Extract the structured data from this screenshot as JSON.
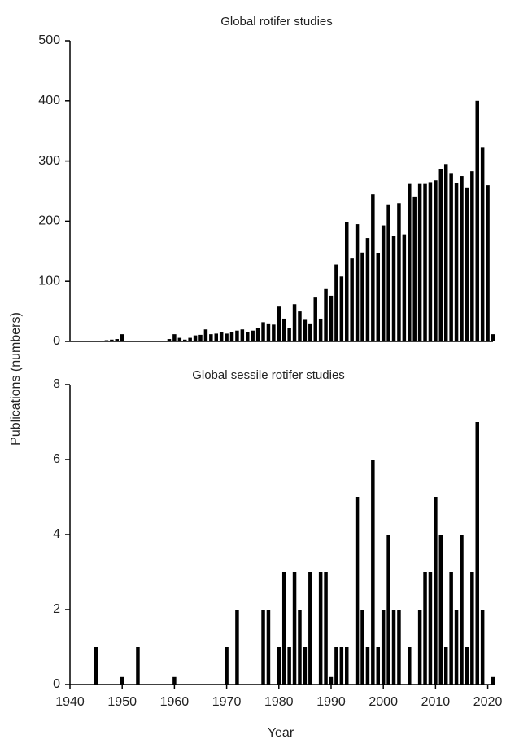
{
  "chart_data": [
    {
      "type": "bar",
      "title": "Global rotifer studies",
      "ylabel": "Publications (numbers)",
      "color": "#000000",
      "x": [
        1944,
        1945,
        1946,
        1947,
        1948,
        1949,
        1950,
        1951,
        1952,
        1953,
        1954,
        1955,
        1956,
        1957,
        1958,
        1959,
        1960,
        1961,
        1962,
        1963,
        1964,
        1965,
        1966,
        1967,
        1968,
        1969,
        1970,
        1971,
        1972,
        1973,
        1974,
        1975,
        1976,
        1977,
        1978,
        1979,
        1980,
        1981,
        1982,
        1983,
        1984,
        1985,
        1986,
        1987,
        1988,
        1989,
        1990,
        1991,
        1992,
        1993,
        1994,
        1995,
        1996,
        1997,
        1998,
        1999,
        2000,
        2001,
        2002,
        2003,
        2004,
        2005,
        2006,
        2007,
        2008,
        2009,
        2010,
        2011,
        2012,
        2013,
        2014,
        2015,
        2016,
        2017,
        2018,
        2019,
        2020,
        2021
      ],
      "values": [
        0,
        0,
        0,
        2,
        3,
        4,
        12,
        0,
        0,
        0,
        0,
        0,
        0,
        0,
        0,
        4,
        12,
        6,
        3,
        6,
        10,
        11,
        20,
        12,
        13,
        15,
        13,
        15,
        18,
        20,
        15,
        18,
        22,
        32,
        30,
        28,
        58,
        38,
        22,
        62,
        50,
        36,
        30,
        73,
        38,
        87,
        76,
        128,
        108,
        198,
        138,
        195,
        148,
        172,
        245,
        147,
        193,
        228,
        176,
        230,
        178,
        262,
        240,
        262,
        262,
        265,
        268,
        286,
        295,
        280,
        263,
        275,
        255,
        283,
        400,
        322,
        260,
        12
      ],
      "xlim": [
        1940,
        2021
      ],
      "ylim": [
        0,
        500
      ],
      "yticks": [
        0,
        100,
        200,
        300,
        400,
        500
      ]
    },
    {
      "type": "bar",
      "title": "Global sessile rotifer studies",
      "xlabel": "Year",
      "color": "#000000",
      "x": [
        1944,
        1945,
        1946,
        1947,
        1948,
        1949,
        1950,
        1951,
        1952,
        1953,
        1954,
        1955,
        1956,
        1957,
        1958,
        1959,
        1960,
        1961,
        1962,
        1963,
        1964,
        1965,
        1966,
        1967,
        1968,
        1969,
        1970,
        1971,
        1972,
        1973,
        1974,
        1975,
        1976,
        1977,
        1978,
        1979,
        1980,
        1981,
        1982,
        1983,
        1984,
        1985,
        1986,
        1987,
        1988,
        1989,
        1990,
        1991,
        1992,
        1993,
        1994,
        1995,
        1996,
        1997,
        1998,
        1999,
        2000,
        2001,
        2002,
        2003,
        2004,
        2005,
        2006,
        2007,
        2008,
        2009,
        2010,
        2011,
        2012,
        2013,
        2014,
        2015,
        2016,
        2017,
        2018,
        2019,
        2020,
        2021
      ],
      "values": [
        0,
        1,
        0,
        0,
        0,
        0,
        0.2,
        0,
        0,
        1,
        0,
        0,
        0,
        0,
        0,
        0,
        0.2,
        0,
        0,
        0,
        0,
        0,
        0,
        0,
        0,
        0,
        1,
        0,
        2,
        0,
        0,
        0,
        0,
        2,
        2,
        0,
        1,
        3,
        1,
        3,
        2,
        1,
        3,
        0,
        3,
        3,
        0.2,
        1,
        1,
        1,
        0,
        5,
        2,
        1,
        6,
        1,
        2,
        4,
        2,
        2,
        0,
        1,
        0,
        2,
        3,
        3,
        5,
        4,
        1,
        3,
        2,
        4,
        1,
        3,
        7,
        2,
        0,
        0.2
      ],
      "xlim": [
        1940,
        2021
      ],
      "ylim": [
        0,
        8
      ],
      "yticks": [
        0,
        2,
        4,
        6,
        8
      ],
      "xticks": [
        1940,
        1950,
        1960,
        1970,
        1980,
        1990,
        2000,
        2010,
        2020
      ]
    }
  ]
}
